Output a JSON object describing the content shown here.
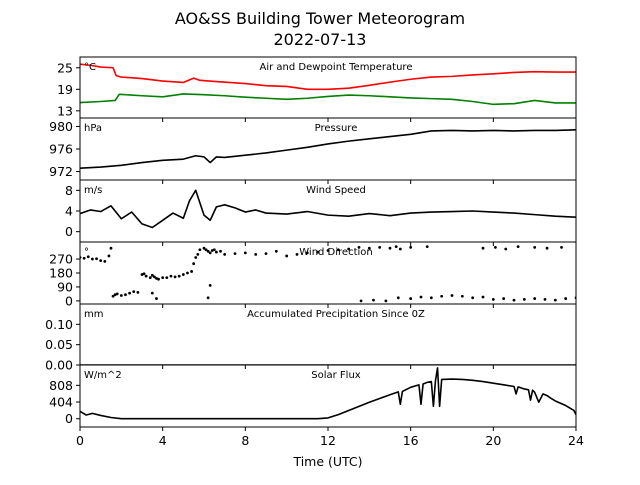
{
  "chart_data": {
    "title_line1": "AO&SS Building Tower Meteorogram",
    "title_line2": "2022-07-13",
    "xlabel": "Time (UTC)",
    "x_ticks": [
      0,
      4,
      8,
      12,
      16,
      20,
      24
    ],
    "x_range": [
      0,
      24
    ],
    "panels": [
      {
        "id": "temp",
        "type": "line",
        "title": "Air and Dewpoint Temperature",
        "unit": "°C",
        "ylim": [
          11,
          28
        ],
        "yticks": [
          13,
          19,
          25
        ],
        "series": [
          {
            "color": "#ff0000",
            "x": [
              0,
              0.5,
              1.0,
              1.6,
              1.75,
              2.0,
              3.0,
              4.0,
              5.0,
              5.5,
              5.8,
              6.5,
              8,
              9,
              10,
              11,
              12,
              13,
              14,
              15,
              16,
              17,
              18,
              19,
              20,
              21,
              22,
              23,
              24
            ],
            "y": [
              26.0,
              25.7,
              25.2,
              25.0,
              22.8,
              22.4,
              22.0,
              21.3,
              20.9,
              22.1,
              21.5,
              21.2,
              20.6,
              20.0,
              19.8,
              19.0,
              19.0,
              19.3,
              20.1,
              21.0,
              21.8,
              22.4,
              22.6,
              23.0,
              23.3,
              23.7,
              23.9,
              23.8,
              23.8
            ]
          },
          {
            "color": "#008000",
            "x": [
              0,
              1.0,
              1.7,
              1.9,
              2.5,
              3.0,
              4.0,
              5.0,
              6.0,
              7.0,
              8.0,
              9.0,
              10.0,
              11.0,
              12.0,
              13.0,
              14.0,
              15.0,
              16.0,
              17.0,
              18.0,
              19.0,
              20.0,
              21.0,
              22.0,
              23.0,
              24.0
            ],
            "y": [
              15.3,
              15.6,
              15.9,
              17.6,
              17.4,
              17.2,
              16.9,
              17.7,
              17.5,
              17.2,
              16.8,
              16.5,
              16.2,
              16.5,
              17.0,
              17.4,
              17.2,
              16.9,
              16.6,
              16.4,
              16.2,
              15.6,
              14.8,
              15.0,
              15.9,
              15.2,
              15.2
            ]
          }
        ]
      },
      {
        "id": "pressure",
        "type": "line",
        "title": "Pressure",
        "unit": "hPa",
        "ylim": [
          970.5,
          981.5
        ],
        "yticks": [
          972,
          976,
          980
        ],
        "series": [
          {
            "color": "#000000",
            "x": [
              0,
              1,
              2,
              3,
              4,
              5,
              5.6,
              6.0,
              6.3,
              6.6,
              7,
              8,
              9,
              10,
              11,
              12,
              13,
              14,
              15,
              16,
              17,
              18,
              19,
              20,
              21,
              22,
              23,
              24
            ],
            "y": [
              972.6,
              972.8,
              973.1,
              973.6,
              974.0,
              974.2,
              974.8,
              974.6,
              973.6,
              974.6,
              974.5,
              974.9,
              975.3,
              975.8,
              976.3,
              976.9,
              977.4,
              977.8,
              978.2,
              978.6,
              979.2,
              979.3,
              979.2,
              979.3,
              979.2,
              979.3,
              979.3,
              979.4
            ]
          }
        ]
      },
      {
        "id": "wind_speed",
        "type": "line",
        "title": "Wind Speed",
        "unit": "m/s",
        "ylim": [
          -2,
          10
        ],
        "yticks": [
          0,
          4,
          8
        ],
        "series": [
          {
            "color": "#000000",
            "x": [
              0,
              0.5,
              1.0,
              1.5,
              2.0,
              2.5,
              3.0,
              3.5,
              4.0,
              4.5,
              5.0,
              5.3,
              5.6,
              6.0,
              6.3,
              6.6,
              7.0,
              7.5,
              8.0,
              8.5,
              9.0,
              10,
              11,
              12,
              13,
              14,
              15,
              16,
              17,
              18,
              19,
              20,
              21,
              22,
              23,
              24
            ],
            "y": [
              3.5,
              4.2,
              3.9,
              5.0,
              2.5,
              3.8,
              1.5,
              0.8,
              2.2,
              3.6,
              2.6,
              6.0,
              8.0,
              3.2,
              2.2,
              4.8,
              5.2,
              4.6,
              3.8,
              4.2,
              3.6,
              3.4,
              3.9,
              3.2,
              3.0,
              3.5,
              3.1,
              3.6,
              3.8,
              3.9,
              4.0,
              3.8,
              3.6,
              3.3,
              3.0,
              2.8
            ]
          }
        ]
      },
      {
        "id": "wind_dir",
        "type": "scatter",
        "title": "Wind Direction",
        "unit": "°",
        "ylim": [
          -20,
          380
        ],
        "yticks": [
          0,
          90,
          180,
          270
        ],
        "series": [
          {
            "color": "#000000",
            "x": [
              0,
              0.2,
              0.4,
              0.6,
              0.8,
              1.0,
              1.2,
              1.4,
              1.5,
              1.6,
              1.7,
              1.8,
              2.0,
              2.2,
              2.4,
              2.6,
              2.8,
              3.0,
              3.1,
              3.2,
              3.4,
              3.5,
              3.6,
              3.7,
              3.8,
              4.0,
              4.2,
              4.4,
              4.6,
              4.8,
              5.0,
              5.2,
              5.4,
              5.5,
              5.6,
              5.7,
              5.8,
              6.0,
              6.1,
              6.2,
              6.3,
              6.4,
              6.5,
              6.6,
              6.8,
              7.0,
              7.5,
              8.0,
              8.5,
              9.0,
              9.5,
              10.0,
              10.5,
              11.0,
              11.5,
              12.0,
              12.5,
              13.0,
              13.5,
              14.0,
              14.5,
              15.0,
              15.5,
              16.0,
              16.5,
              17.0,
              17.5,
              18.0,
              18.5,
              19.0,
              19.5,
              20.0,
              20.5,
              21.0,
              21.5,
              22.0,
              22.5,
              23.0,
              23.5,
              24.0,
              15.4,
              16.0,
              16.8,
              19.5,
              20.1,
              20.6,
              21.2,
              22.0,
              22.6,
              23.3,
              3.5,
              3.7,
              6.2,
              6.3,
              13.6,
              14.2,
              14.8,
              15.3
            ],
            "y": [
              280,
              275,
              285,
              270,
              272,
              260,
              255,
              290,
              340,
              30,
              40,
              45,
              35,
              40,
              50,
              60,
              55,
              170,
              175,
              160,
              150,
              165,
              155,
              145,
              140,
              150,
              150,
              160,
              155,
              160,
              170,
              180,
              190,
              240,
              280,
              300,
              330,
              340,
              330,
              320,
              310,
              325,
              330,
              315,
              320,
              300,
              305,
              310,
              300,
              305,
              320,
              290,
              300,
              310,
              315,
              325,
              330,
              335,
              345,
              340,
              345,
              340,
              335,
              15,
              25,
              20,
              30,
              35,
              30,
              20,
              25,
              10,
              15,
              5,
              10,
              15,
              10,
              5,
              15,
              20,
              20,
              345,
              350,
              340,
              345,
              335,
              350,
              345,
              340,
              345,
              50,
              15,
              20,
              100,
              0,
              5,
              0,
              350
            ]
          }
        ]
      },
      {
        "id": "precip",
        "type": "line",
        "title": "Accumulated Precipitation Since 0Z",
        "unit": "mm",
        "ylim": [
          0,
          0.15
        ],
        "yticks": [
          0.0,
          0.05,
          0.1
        ],
        "ytick_labels": [
          "0.00",
          "0.05",
          "0.10"
        ],
        "series": [
          {
            "color": "#000000",
            "x": [
              0,
              24
            ],
            "y": [
              0,
              0
            ]
          }
        ]
      },
      {
        "id": "solar",
        "type": "line",
        "title": "Solar Flux",
        "unit": "W/m^2",
        "ylim": [
          -200,
          1300
        ],
        "yticks": [
          0,
          404,
          808
        ],
        "series": [
          {
            "color": "#000000",
            "x": [
              0,
              0.3,
              0.6,
              1.0,
              1.5,
              2.0,
              2.5,
              3.0,
              4,
              5,
              6,
              7,
              8,
              9,
              10,
              11,
              11.5,
              12.0,
              12.5,
              13.0,
              13.5,
              14.0,
              14.5,
              15.0,
              15.4,
              15.5,
              15.6,
              16.0,
              16.4,
              16.5,
              16.6,
              16.8,
              17.0,
              17.1,
              17.2,
              17.3,
              17.4,
              17.5,
              18.0,
              18.5,
              19.0,
              19.5,
              20.0,
              20.5,
              21.0,
              21.1,
              21.2,
              21.5,
              21.7,
              21.8,
              21.9,
              22.0,
              22.2,
              22.4,
              22.6,
              22.8,
              23.0,
              23.5,
              23.9,
              24.0
            ],
            "y": [
              180,
              90,
              130,
              80,
              30,
              0,
              0,
              0,
              0,
              0,
              0,
              0,
              0,
              0,
              0,
              0,
              0,
              20,
              100,
              200,
              300,
              400,
              490,
              580,
              650,
              350,
              660,
              760,
              820,
              350,
              840,
              880,
              900,
              300,
              920,
              1230,
              300,
              950,
              960,
              950,
              930,
              900,
              860,
              820,
              780,
              600,
              770,
              720,
              700,
              450,
              690,
              640,
              400,
              600,
              560,
              490,
              430,
              320,
              200,
              100
            ]
          }
        ]
      }
    ]
  }
}
